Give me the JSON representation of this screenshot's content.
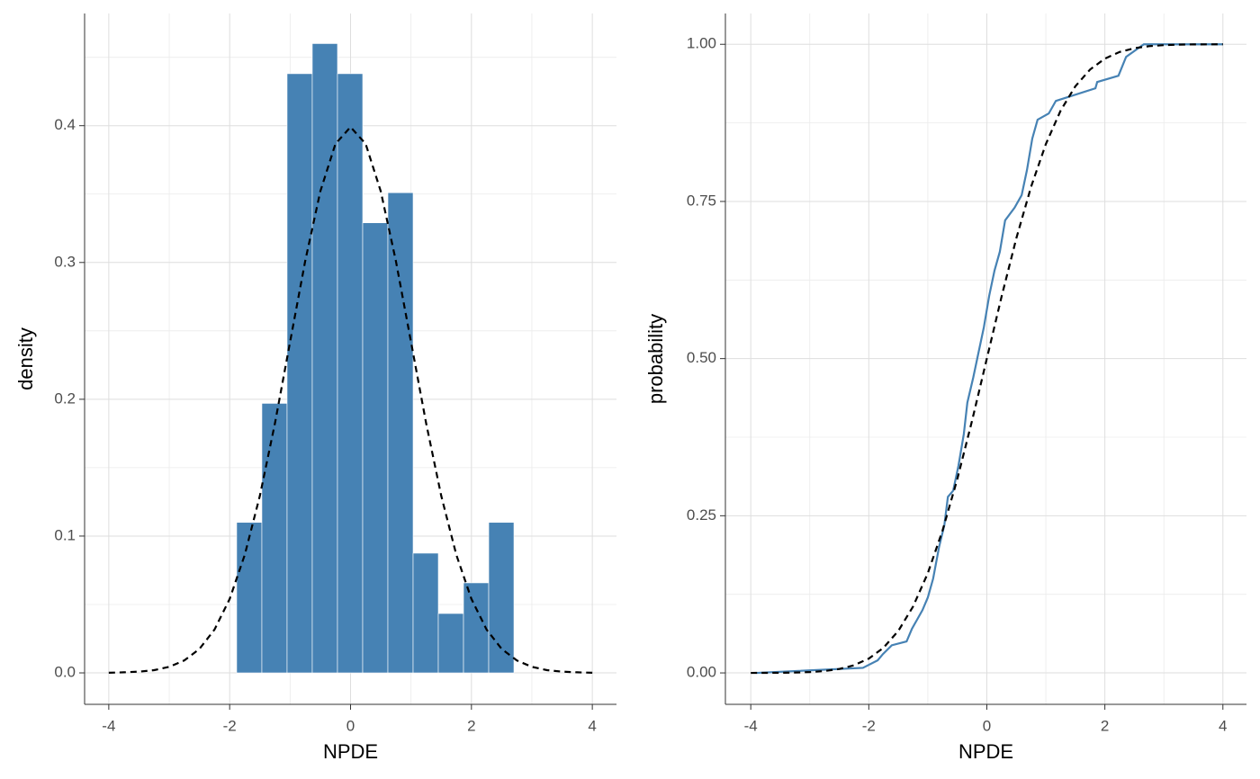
{
  "chart_data": [
    {
      "type": "histogram",
      "x_label": "NPDE",
      "y_label": "density",
      "bins": [
        -1.884,
        -1.467,
        -1.05,
        -0.633,
        -0.216,
        0.201,
        0.618,
        1.035,
        1.452,
        1.869,
        2.286,
        2.703
      ],
      "values": [
        0.11,
        0.197,
        0.438,
        0.46,
        0.438,
        0.329,
        0.351,
        0.0875,
        0.0434,
        0.0658,
        0.11
      ],
      "color": "#4682b4",
      "overlay": {
        "x": [
          -4,
          -3.75,
          -3.5,
          -3.25,
          -3,
          -2.75,
          -2.5,
          -2.25,
          -2,
          -1.75,
          -1.5,
          -1.25,
          -1,
          -0.75,
          -0.5,
          -0.25,
          0,
          0.25,
          0.5,
          0.75,
          1,
          1.25,
          1.5,
          1.75,
          2,
          2.25,
          2.5,
          2.75,
          3,
          3.25,
          3.5,
          3.75,
          4
        ],
        "values": [
          0.0001,
          0.0004,
          0.0009,
          0.002,
          0.0044,
          0.0091,
          0.0175,
          0.0317,
          0.054,
          0.0863,
          0.1295,
          0.1826,
          0.242,
          0.3011,
          0.352,
          0.3867,
          0.399,
          0.3867,
          0.352,
          0.3011,
          0.242,
          0.1826,
          0.1295,
          0.0863,
          0.054,
          0.0317,
          0.0175,
          0.0091,
          0.0044,
          0.002,
          0.0009,
          0.0004,
          0.0001
        ],
        "color": "#000000",
        "dash": true
      },
      "xlim": [
        -4.4,
        4.4
      ],
      "ylim": [
        -0.023,
        0.482
      ],
      "xticks": [
        -4,
        -2,
        0,
        2,
        4
      ],
      "yticks": [
        {
          "value": 0,
          "label": "0.0"
        },
        {
          "value": 0.1,
          "label": "0.1"
        },
        {
          "value": 0.2,
          "label": "0.2"
        },
        {
          "value": 0.3,
          "label": "0.3"
        },
        {
          "value": 0.4,
          "label": "0.4"
        }
      ],
      "minor_xticks": [
        -3,
        -1,
        1,
        3
      ],
      "minor_yticks": [
        0.05,
        0.15,
        0.25,
        0.35,
        0.45
      ],
      "grid": true
    },
    {
      "type": "line",
      "x_label": "NPDE",
      "y_label": "probability",
      "series": [
        {
          "color": "#4682b4",
          "dash": false,
          "x": [
            -3.9,
            -2.1,
            -1.85,
            -1.76,
            -1.61,
            -1.36,
            -1.27,
            -1.09,
            -1.0,
            -0.91,
            -0.81,
            -0.72,
            -0.66,
            -0.57,
            -0.48,
            -0.39,
            -0.33,
            -0.23,
            -0.14,
            -0.05,
            0.04,
            0.13,
            0.22,
            0.31,
            0.47,
            0.59,
            0.68,
            0.77,
            0.86,
            1.05,
            1.17,
            1.84,
            1.87,
            2.23,
            2.36,
            2.66,
            4
          ],
          "values": [
            0,
            0.008,
            0.02,
            0.03,
            0.044,
            0.05,
            0.07,
            0.1,
            0.12,
            0.15,
            0.2,
            0.235,
            0.28,
            0.29,
            0.33,
            0.38,
            0.43,
            0.47,
            0.51,
            0.55,
            0.6,
            0.64,
            0.67,
            0.72,
            0.74,
            0.76,
            0.8,
            0.85,
            0.88,
            0.89,
            0.91,
            0.93,
            0.94,
            0.95,
            0.98,
            1.0,
            1.0
          ]
        },
        {
          "color": "#000000",
          "dash": true,
          "x": [
            -4,
            -3.75,
            -3.5,
            -3.25,
            -3,
            -2.75,
            -2.5,
            -2.25,
            -2,
            -1.75,
            -1.5,
            -1.25,
            -1,
            -0.75,
            -0.5,
            -0.25,
            0,
            0.25,
            0.5,
            0.75,
            1,
            1.25,
            1.5,
            1.75,
            2,
            2.25,
            2.5,
            2.75,
            3,
            3.25,
            3.5,
            3.75,
            4
          ],
          "values": [
            3e-05,
            0.0001,
            0.0002,
            0.0006,
            0.0013,
            0.003,
            0.0062,
            0.0122,
            0.0228,
            0.0401,
            0.0668,
            0.1056,
            0.1587,
            0.2266,
            0.3085,
            0.4013,
            0.5,
            0.5987,
            0.6915,
            0.7734,
            0.8413,
            0.8944,
            0.9332,
            0.9599,
            0.9772,
            0.9878,
            0.9938,
            0.997,
            0.9987,
            0.9994,
            0.9998,
            0.9999,
            0.99997
          ]
        }
      ],
      "xlim": [
        -4.43,
        4.4
      ],
      "ylim": [
        -0.05,
        1.049
      ],
      "xticks": [
        -4,
        -2,
        0,
        2,
        4
      ],
      "yticks": [
        {
          "value": 0,
          "label": "0.00"
        },
        {
          "value": 0.25,
          "label": "0.25"
        },
        {
          "value": 0.5,
          "label": "0.50"
        },
        {
          "value": 0.75,
          "label": "0.75"
        },
        {
          "value": 1,
          "label": "1.00"
        }
      ],
      "minor_xticks": [
        -3,
        -1,
        1,
        3
      ],
      "minor_yticks": [
        0.125,
        0.375,
        0.625,
        0.875
      ],
      "grid": true
    }
  ]
}
